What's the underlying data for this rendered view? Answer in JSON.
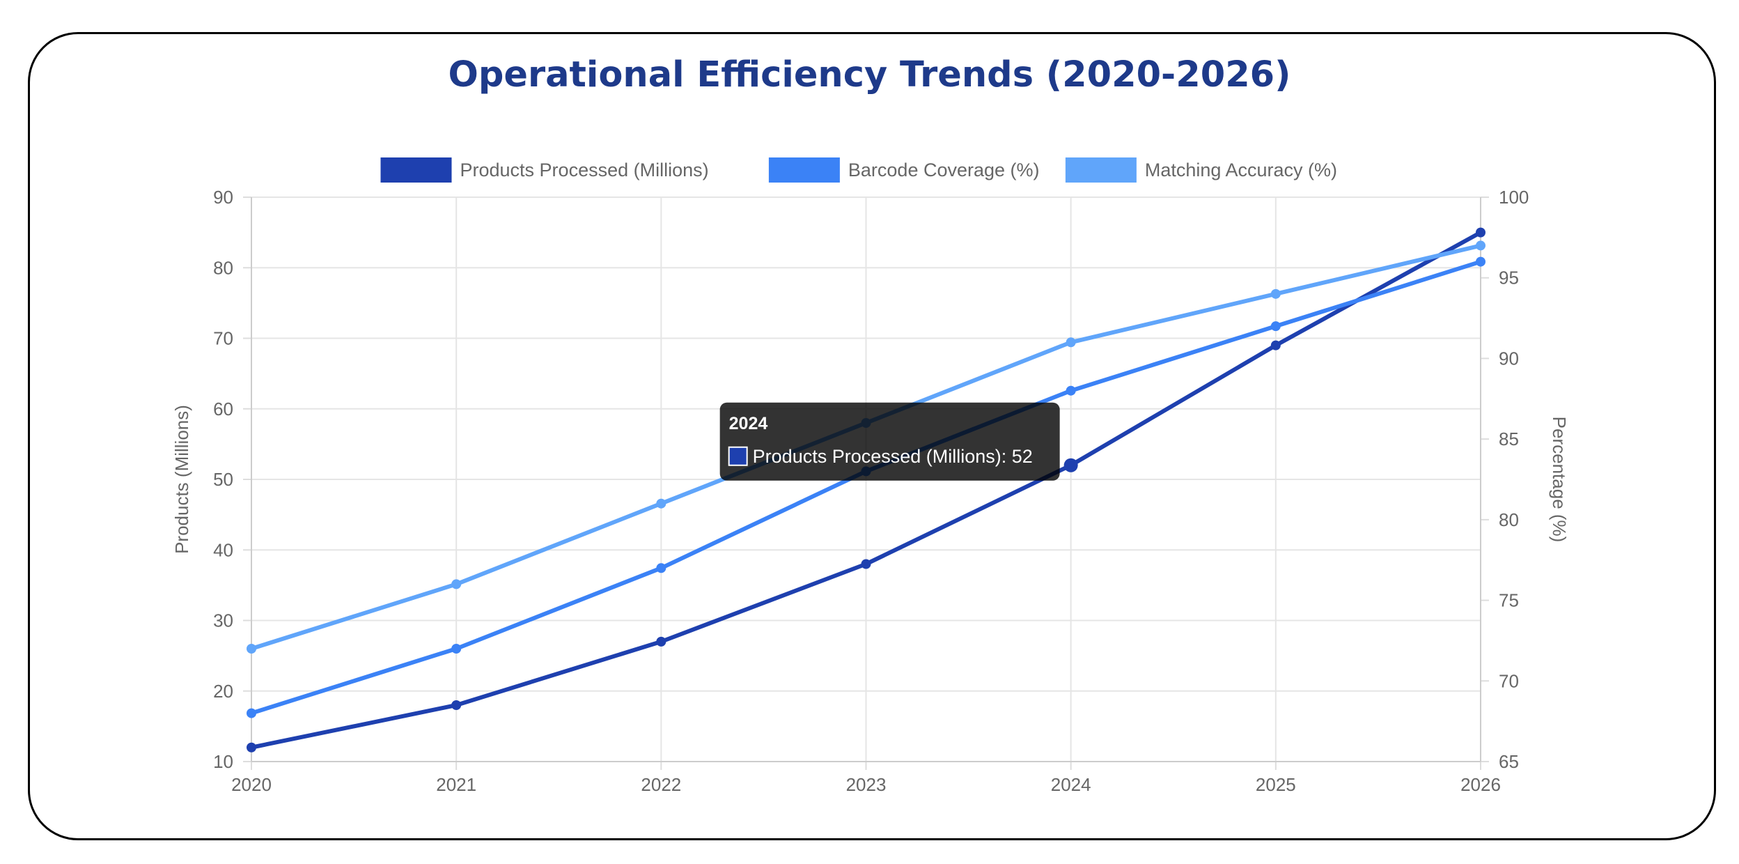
{
  "chart_data": {
    "type": "line",
    "title": "Operational Efficiency Trends (2020-2026)",
    "x": [
      "2020",
      "2021",
      "2022",
      "2023",
      "2024",
      "2025",
      "2026"
    ],
    "series": [
      {
        "name": "Products Processed (Millions)",
        "axis": "left",
        "color": "#1e40af",
        "values": [
          12,
          18,
          27,
          38,
          52,
          69,
          85
        ]
      },
      {
        "name": "Barcode Coverage (%)",
        "axis": "right",
        "color": "#3b82f6",
        "values": [
          68,
          72,
          77,
          83,
          88,
          92,
          96
        ]
      },
      {
        "name": "Matching Accuracy (%)",
        "axis": "right",
        "color": "#60a5fa",
        "values": [
          72,
          76,
          81,
          86,
          91,
          94,
          97
        ]
      }
    ],
    "ylabel": "Products (Millions)",
    "y2label": "Percentage (%)",
    "ylim": [
      10,
      90
    ],
    "y2lim": [
      65,
      100
    ],
    "yticks": [
      "90",
      "80",
      "70",
      "60",
      "50",
      "40",
      "30",
      "20",
      "10"
    ],
    "y2ticks": [
      "100",
      "95",
      "90",
      "85",
      "80",
      "75",
      "70",
      "65"
    ],
    "grid": true,
    "legend_position": "top",
    "tooltip": {
      "title": "2024",
      "body": "Products Processed (Millions): 52",
      "series_index": 0,
      "point_index": 4
    }
  }
}
